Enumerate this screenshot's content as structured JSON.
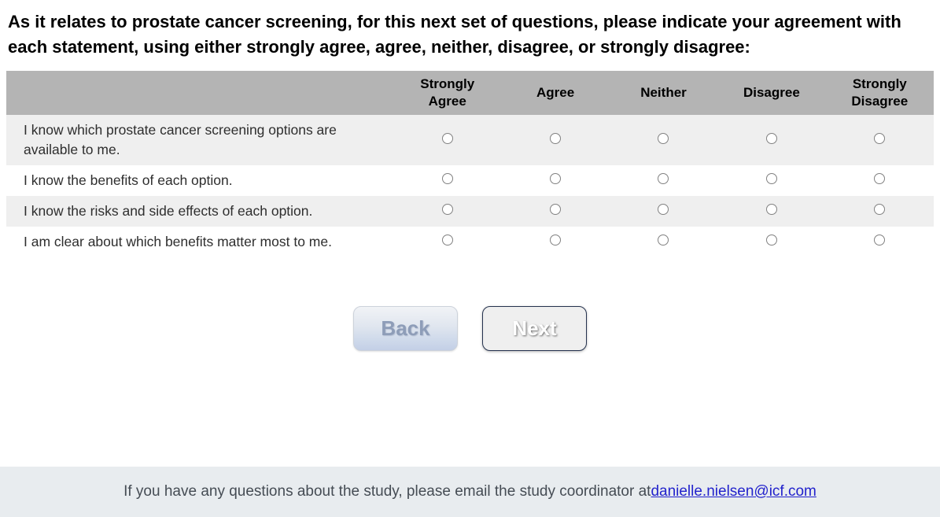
{
  "page": {
    "heading": "As it relates to prostate cancer screening, for this next set of questions, please indicate your agreement with each statement, using either strongly agree, agree, neither, disagree, or strongly disagree:"
  },
  "matrix": {
    "columns": [
      "Strongly Agree",
      "Agree",
      "Neither",
      "Disagree",
      "Strongly Disagree"
    ],
    "rows": [
      {
        "statement": "I know which prostate cancer screening options are available to me."
      },
      {
        "statement": "I know the benefits of each option."
      },
      {
        "statement": "I know the risks and side effects of each option."
      },
      {
        "statement": "I am clear about which benefits matter most to me."
      }
    ],
    "radio_state": "unselected",
    "header_bg": "#b4b4b4",
    "alt_row_bg": "#efefef"
  },
  "buttons": {
    "back": "Back",
    "next": "Next"
  },
  "footer": {
    "text_before_link": "If you have any questions about the study, please email the study coordinator at ",
    "email_link": "danielle.nielsen@icf.com",
    "bg": "#e8ecef",
    "link_color": "#2222cc"
  }
}
